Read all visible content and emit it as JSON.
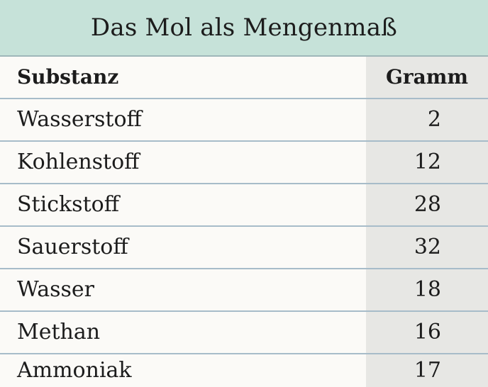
{
  "table": {
    "title": "Das Mol als Mengenmaß",
    "header": {
      "substance": "Substanz",
      "grams": "Gramm"
    },
    "rows": [
      {
        "substance": "Wasserstoff",
        "grams": "2"
      },
      {
        "substance": "Kohlenstoff",
        "grams": "12"
      },
      {
        "substance": "Stickstoff",
        "grams": "28"
      },
      {
        "substance": "Sauerstoff",
        "grams": "32"
      },
      {
        "substance": "Wasser",
        "grams": "18"
      },
      {
        "substance": "Methan",
        "grams": "16"
      },
      {
        "substance": "Ammoniak",
        "grams": "17"
      }
    ]
  },
  "colors": {
    "title_background": "#c6e2d9",
    "row_divider": "#a7bcc9",
    "value_column_background": "#e7e7e4"
  }
}
